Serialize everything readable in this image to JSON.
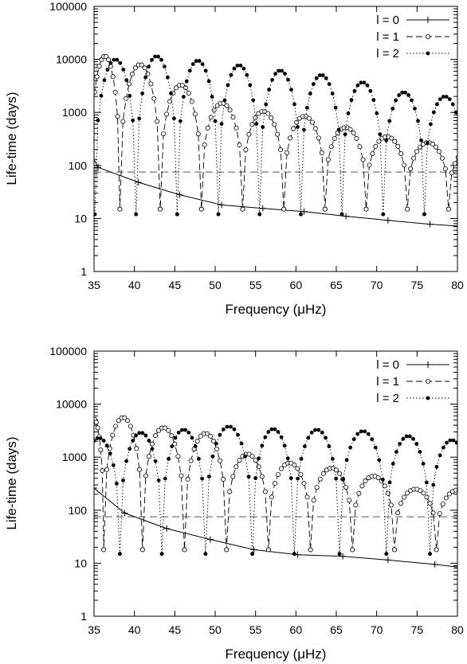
{
  "chart_data": [
    {
      "type": "line",
      "xlabel": "Frequency (μHz)",
      "ylabel": "Life-time (days)",
      "xlim": [
        35,
        80
      ],
      "ylim": [
        1,
        100000
      ],
      "yscale": "log",
      "grid": false,
      "legend_position": "top-right",
      "x_ticks": [
        "35",
        "40",
        "45",
        "50",
        "55",
        "60",
        "65",
        "70",
        "75",
        "80"
      ],
      "y_ticks": [
        "1",
        "10",
        "100",
        "1000",
        "10000",
        "100000"
      ],
      "reference_line": {
        "y": 75
      },
      "series": [
        {
          "name": "l = 0",
          "style": "solid",
          "marker": "plus",
          "x": [
            35.0,
            35.5,
            40.5,
            45.6,
            50.8,
            55.9,
            61.0,
            66.2,
            71.4,
            76.6,
            80.0
          ],
          "y": [
            130,
            92,
            48,
            28,
            18,
            15.5,
            13.5,
            11.0,
            9.2,
            7.8,
            7.2
          ]
        },
        {
          "name": "l = 1",
          "style": "dashed",
          "marker": "open-circle",
          "cycles": [
            {
              "x0": 34.5,
              "x1": 38.2,
              "peak": 11500
            },
            {
              "x0": 38.2,
              "x1": 43.2,
              "peak": 8000
            },
            {
              "x0": 43.2,
              "x1": 48.3,
              "peak": 3300
            },
            {
              "x0": 48.3,
              "x1": 53.4,
              "peak": 1500
            },
            {
              "x0": 53.4,
              "x1": 58.5,
              "peak": 1050
            },
            {
              "x0": 58.5,
              "x1": 63.6,
              "peak": 850
            },
            {
              "x0": 63.6,
              "x1": 68.7,
              "peak": 520
            },
            {
              "x0": 68.7,
              "x1": 73.8,
              "peak": 350
            },
            {
              "x0": 73.8,
              "x1": 78.9,
              "peak": 270
            },
            {
              "x0": 78.9,
              "x1": 84.0,
              "peak": 200
            }
          ],
          "trough": 15
        },
        {
          "name": "l = 2",
          "style": "dotted",
          "marker": "filled-circle",
          "cycles": [
            {
              "x0": 35.1,
              "x1": 40.2,
              "peak": 10000
            },
            {
              "x0": 40.2,
              "x1": 45.3,
              "peak": 11500
            },
            {
              "x0": 45.3,
              "x1": 50.4,
              "peak": 9500
            },
            {
              "x0": 50.4,
              "x1": 55.5,
              "peak": 7800
            },
            {
              "x0": 55.5,
              "x1": 60.6,
              "peak": 6200
            },
            {
              "x0": 60.6,
              "x1": 65.7,
              "peak": 5100
            },
            {
              "x0": 65.7,
              "x1": 70.8,
              "peak": 3700
            },
            {
              "x0": 70.8,
              "x1": 75.9,
              "peak": 2400
            },
            {
              "x0": 75.9,
              "x1": 81.0,
              "peak": 2000
            }
          ],
          "trough": 12
        }
      ]
    },
    {
      "type": "line",
      "xlabel": "Frequency (μHz)",
      "ylabel": "Life-time (days)",
      "xlim": [
        35,
        80
      ],
      "ylim": [
        1,
        100000
      ],
      "yscale": "log",
      "grid": false,
      "legend_position": "top-right",
      "x_ticks": [
        "35",
        "40",
        "45",
        "50",
        "55",
        "60",
        "65",
        "70",
        "75",
        "80"
      ],
      "y_ticks": [
        "1",
        "10",
        "100",
        "1000",
        "10000",
        "100000"
      ],
      "reference_line": {
        "y": 75
      },
      "series": [
        {
          "name": "l = 0",
          "style": "solid",
          "marker": "plus",
          "x": [
            35.0,
            38.8,
            44.0,
            49.4,
            54.8,
            60.2,
            65.8,
            71.4,
            77.2,
            80.0
          ],
          "y": [
            260,
            88,
            45,
            28,
            18,
            14.5,
            13.5,
            11.5,
            9.5,
            8.5
          ]
        },
        {
          "name": "l = 1",
          "style": "dashed",
          "marker": "open-circle",
          "cycles": [
            {
              "x0": 33.8,
              "x1": 36.2,
              "peak": 5200
            },
            {
              "x0": 36.2,
              "x1": 41.0,
              "peak": 5600
            },
            {
              "x0": 41.0,
              "x1": 46.2,
              "peak": 3600
            },
            {
              "x0": 46.2,
              "x1": 51.4,
              "peak": 2800
            },
            {
              "x0": 51.4,
              "x1": 56.6,
              "peak": 1150
            },
            {
              "x0": 56.6,
              "x1": 61.8,
              "peak": 780
            },
            {
              "x0": 61.8,
              "x1": 67.0,
              "peak": 620
            },
            {
              "x0": 67.0,
              "x1": 72.2,
              "peak": 440
            },
            {
              "x0": 72.2,
              "x1": 77.4,
              "peak": 250
            },
            {
              "x0": 77.4,
              "x1": 82.6,
              "peak": 240
            }
          ],
          "trough": 18
        },
        {
          "name": "l = 2",
          "style": "dotted",
          "marker": "filled-circle",
          "cycles": [
            {
              "x0": 33.0,
              "x1": 38.2,
              "peak": 2300
            },
            {
              "x0": 38.2,
              "x1": 43.4,
              "peak": 2900
            },
            {
              "x0": 43.4,
              "x1": 48.8,
              "peak": 3300
            },
            {
              "x0": 48.8,
              "x1": 54.6,
              "peak": 3800
            },
            {
              "x0": 54.6,
              "x1": 59.8,
              "peak": 3400
            },
            {
              "x0": 59.8,
              "x1": 65.4,
              "peak": 3300
            },
            {
              "x0": 65.4,
              "x1": 71.2,
              "peak": 3100
            },
            {
              "x0": 71.2,
              "x1": 76.6,
              "peak": 2500
            },
            {
              "x0": 76.6,
              "x1": 82.0,
              "peak": 2100
            }
          ],
          "trough": 15
        }
      ]
    }
  ]
}
